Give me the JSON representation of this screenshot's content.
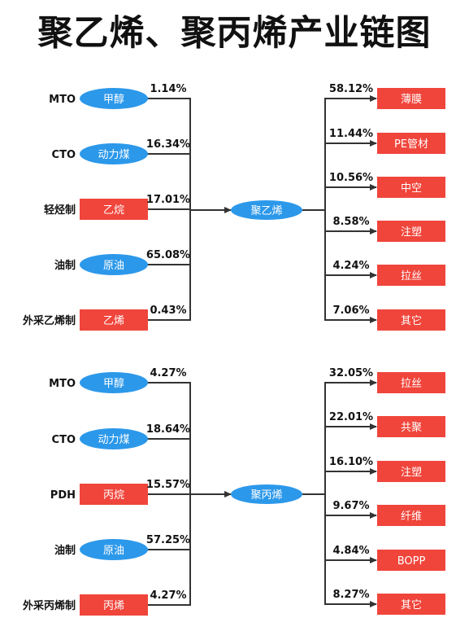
{
  "title": "聚乙烯、聚丙烯产业链图",
  "colors": {
    "blue": "#2c98ea",
    "red": "#f0453b",
    "line": "#333333",
    "text": "#111111"
  },
  "chains": [
    {
      "center": "聚乙烯",
      "inputs": [
        {
          "label": "MTO",
          "node": "甲醇",
          "shape": "ellipse",
          "pct": "1.14%"
        },
        {
          "label": "CTO",
          "node": "动力煤",
          "shape": "ellipse",
          "pct": "16.34%"
        },
        {
          "label": "轻烃制",
          "node": "乙烷",
          "shape": "rect",
          "pct": "17.01%"
        },
        {
          "label": "油制",
          "node": "原油",
          "shape": "ellipse",
          "pct": "65.08%"
        },
        {
          "label": "外采乙烯制",
          "node": "乙烯",
          "shape": "rect",
          "pct": "0.43%"
        }
      ],
      "outputs": [
        {
          "node": "薄膜",
          "pct": "58.12%"
        },
        {
          "node": "PE管材",
          "pct": "11.44%"
        },
        {
          "node": "中空",
          "pct": "10.56%"
        },
        {
          "node": "注塑",
          "pct": "8.58%"
        },
        {
          "node": "拉丝",
          "pct": "4.24%"
        },
        {
          "node": "其它",
          "pct": "7.06%"
        }
      ]
    },
    {
      "center": "聚丙烯",
      "inputs": [
        {
          "label": "MTO",
          "node": "甲醇",
          "shape": "ellipse",
          "pct": "4.27%"
        },
        {
          "label": "CTO",
          "node": "动力煤",
          "shape": "ellipse",
          "pct": "18.64%"
        },
        {
          "label": "PDH",
          "node": "丙烷",
          "shape": "rect",
          "pct": "15.57%"
        },
        {
          "label": "油制",
          "node": "原油",
          "shape": "ellipse",
          "pct": "57.25%"
        },
        {
          "label": "外采丙烯制",
          "node": "丙烯",
          "shape": "rect",
          "pct": "4.27%"
        }
      ],
      "outputs": [
        {
          "node": "拉丝",
          "pct": "32.05%"
        },
        {
          "node": "共聚",
          "pct": "22.01%"
        },
        {
          "node": "注塑",
          "pct": "16.10%"
        },
        {
          "node": "纤维",
          "pct": "9.67%"
        },
        {
          "node": "BOPP",
          "pct": "4.84%"
        },
        {
          "node": "其它",
          "pct": "8.27%"
        }
      ]
    }
  ]
}
